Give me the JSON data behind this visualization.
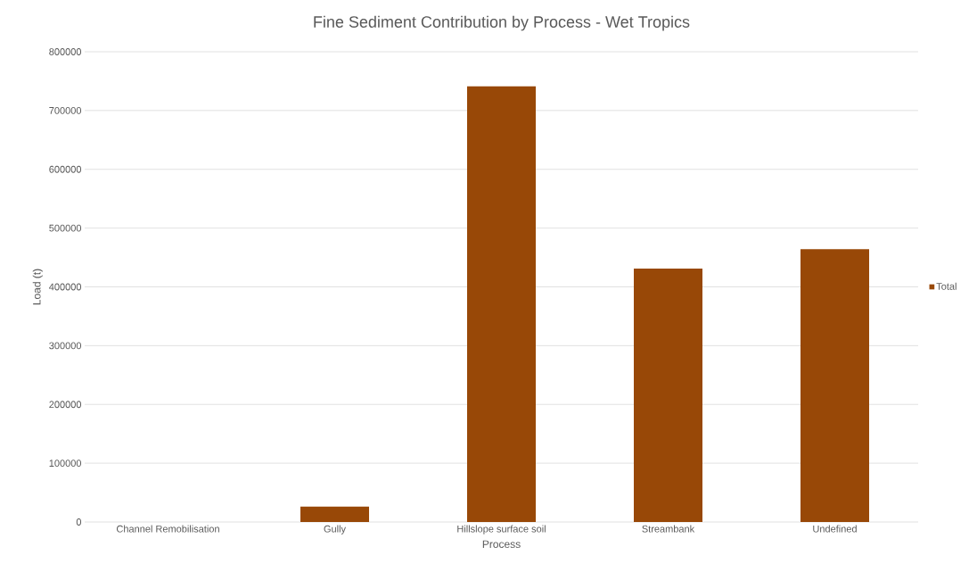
{
  "chart_data": {
    "type": "bar",
    "title": "Fine Sediment Contribution by Process - Wet Tropics",
    "xlabel": "Process",
    "ylabel": "Load (t)",
    "categories": [
      "Channel Remobilisation",
      "Gully",
      "Hillslope surface soil",
      "Streambank",
      "Undefined"
    ],
    "series": [
      {
        "name": "Total",
        "color": "#984807",
        "values": [
          0,
          26000,
          741000,
          431000,
          464000
        ]
      }
    ],
    "ylim": [
      0,
      800000
    ],
    "yticks": [
      0,
      100000,
      200000,
      300000,
      400000,
      500000,
      600000,
      700000,
      800000
    ],
    "grid": "y",
    "legend": "right"
  }
}
